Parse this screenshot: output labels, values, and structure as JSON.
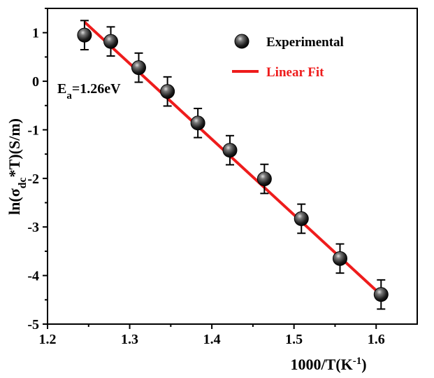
{
  "chart_data": {
    "type": "scatter",
    "xlabel_base": "1000/T(K",
    "xlabel_sup": "-1",
    "xlabel_end": ")",
    "ylabel_pre": "ln(σ",
    "ylabel_sub": "dc",
    "ylabel_post": "*T)(S/m)",
    "xlim": [
      1.2,
      1.65
    ],
    "ylim": [
      -5,
      1.5
    ],
    "xticks": [
      1.2,
      1.3,
      1.4,
      1.5,
      1.6
    ],
    "yticks": [
      -5,
      -4,
      -3,
      -2,
      -1,
      0,
      1
    ],
    "annotation": {
      "main": "E",
      "sub": "a",
      "rest": "=1.26eV"
    },
    "legend": {
      "position": "top-right",
      "experimental_label": "Experimental",
      "fit_label": "Linear Fit"
    },
    "colors": {
      "fit": "#ee1c1c",
      "marker": "#111111",
      "text": "#000000"
    },
    "series": [
      {
        "name": "Experimental",
        "x": [
          1.245,
          1.277,
          1.311,
          1.346,
          1.383,
          1.422,
          1.464,
          1.509,
          1.556,
          1.606
        ],
        "y": [
          0.95,
          0.82,
          0.28,
          -0.21,
          -0.86,
          -1.42,
          -2.01,
          -2.83,
          -3.65,
          -4.39
        ],
        "error": 0.3
      },
      {
        "name": "Linear Fit",
        "x": [
          1.245,
          1.606
        ],
        "y": [
          1.22,
          -4.4
        ]
      }
    ]
  }
}
